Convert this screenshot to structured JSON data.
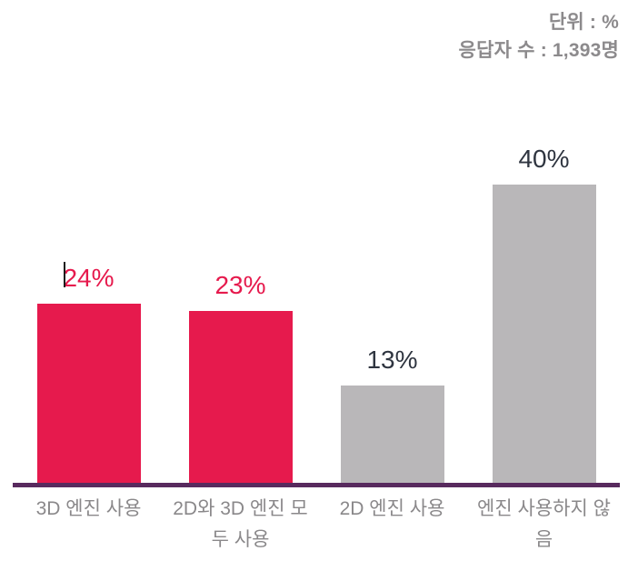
{
  "header": {
    "unit_note": "단위 : %",
    "respondents_note": "응답자 수 : 1,393명"
  },
  "colors": {
    "accent_pink": "#e61a4d",
    "bar_gray": "#b9b7b9",
    "axis_purple": "#582a5e",
    "value_dark": "#2f3540",
    "text_gray": "#8c8a8c"
  },
  "chart_data": {
    "type": "bar",
    "categories": [
      "3D 엔진 사용",
      "2D와 3D 엔진 모두 사용",
      "2D 엔진 사용",
      "엔진 사용하지 않음"
    ],
    "values": [
      24,
      23,
      13,
      40
    ],
    "value_labels": [
      "24%",
      "23%",
      "13%",
      "40%"
    ],
    "bar_colors": [
      "#e61a4d",
      "#e61a4d",
      "#b9b7b9",
      "#b9b7b9"
    ],
    "value_label_colors": [
      "#e61a4d",
      "#e61a4d",
      "#2f3540",
      "#2f3540"
    ],
    "unit": "%",
    "ylabel": "",
    "xlabel": "",
    "ylim": [
      0,
      42
    ],
    "grid": false,
    "legend": false
  }
}
